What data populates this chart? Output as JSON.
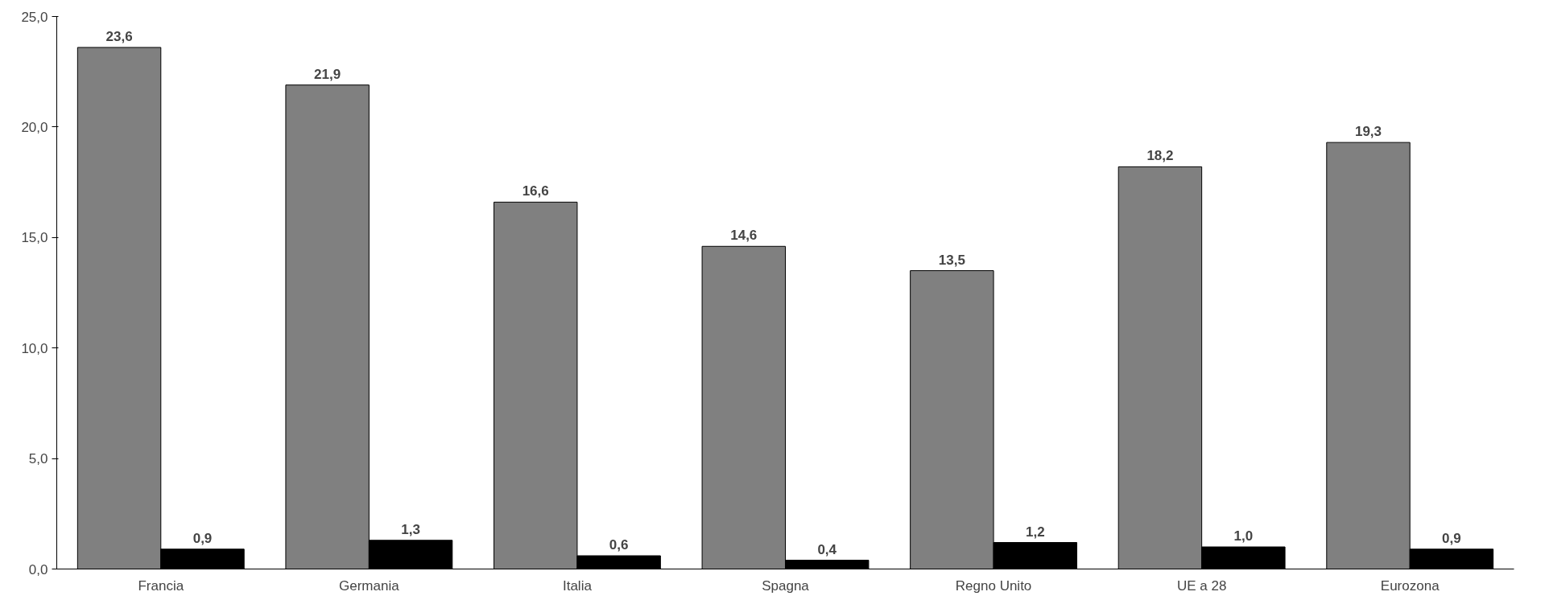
{
  "chart_data": {
    "type": "bar",
    "categories": [
      "Francia",
      "Germania",
      "Italia",
      "Spagna",
      "Regno Unito",
      "UE a 28",
      "Eurozona"
    ],
    "series": [
      {
        "color": "#808080",
        "values": [
          23.6,
          21.9,
          16.6,
          14.6,
          13.5,
          18.2,
          19.3
        ],
        "value_labels": [
          "23,6",
          "21,9",
          "16,6",
          "14,6",
          "13,5",
          "18,2",
          "19,3"
        ]
      },
      {
        "color": "#000000",
        "values": [
          0.9,
          1.3,
          0.6,
          0.4,
          1.2,
          1.0,
          0.9
        ],
        "value_labels": [
          "0,9",
          "1,3",
          "0,6",
          "0,4",
          "1,2",
          "1,0",
          "0,9"
        ]
      }
    ],
    "ylim": [
      0,
      25
    ],
    "yticks": [
      {
        "value": 0,
        "label": "0,0"
      },
      {
        "value": 5,
        "label": "5,0"
      },
      {
        "value": 10,
        "label": "10,0"
      },
      {
        "value": 15,
        "label": "15,0"
      },
      {
        "value": 20,
        "label": "20,0"
      },
      {
        "value": 25,
        "label": "25,0"
      }
    ],
    "grid": false
  }
}
